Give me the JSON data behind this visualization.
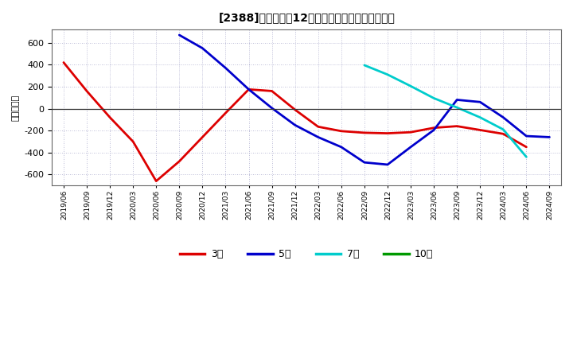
{
  "title": "[2388]　経常利益12か月移動合計の平均値の推移",
  "ylabel": "（百万円）",
  "background_color": "#ffffff",
  "plot_bg_color": "#ffffff",
  "grid_color": "#aaaacc",
  "ylim": [
    -700,
    720
  ],
  "yticks": [
    -600,
    -400,
    -200,
    0,
    200,
    400,
    600
  ],
  "legend_labels": [
    "3年",
    "5年",
    "7年",
    "10年"
  ],
  "legend_colors": [
    "#dd0000",
    "#0000cc",
    "#00cccc",
    "#009900"
  ],
  "x_dates": [
    "2019/06",
    "2019/09",
    "2019/12",
    "2020/03",
    "2020/06",
    "2020/09",
    "2020/12",
    "2021/03",
    "2021/06",
    "2021/09",
    "2021/12",
    "2022/03",
    "2022/06",
    "2022/09",
    "2022/12",
    "2023/03",
    "2023/06",
    "2023/09",
    "2023/12",
    "2024/03",
    "2024/06",
    "2024/09"
  ],
  "series_3y": [
    420,
    160,
    -80,
    -300,
    -660,
    -480,
    -260,
    -40,
    175,
    160,
    -10,
    -165,
    -205,
    -220,
    -225,
    -215,
    -175,
    -160,
    -195,
    -230,
    -350,
    null
  ],
  "series_5y": [
    null,
    null,
    null,
    null,
    null,
    670,
    550,
    370,
    175,
    5,
    -150,
    -260,
    -350,
    -490,
    -510,
    -350,
    -195,
    80,
    60,
    -80,
    -250,
    -260
  ],
  "series_7y": [
    null,
    null,
    null,
    null,
    null,
    null,
    null,
    null,
    null,
    null,
    null,
    null,
    null,
    395,
    310,
    205,
    95,
    10,
    -80,
    -190,
    -440,
    null
  ],
  "series_10y": [
    null,
    null,
    null,
    null,
    null,
    null,
    null,
    null,
    null,
    null,
    null,
    null,
    null,
    null,
    null,
    null,
    null,
    null,
    null,
    null,
    null,
    null
  ]
}
